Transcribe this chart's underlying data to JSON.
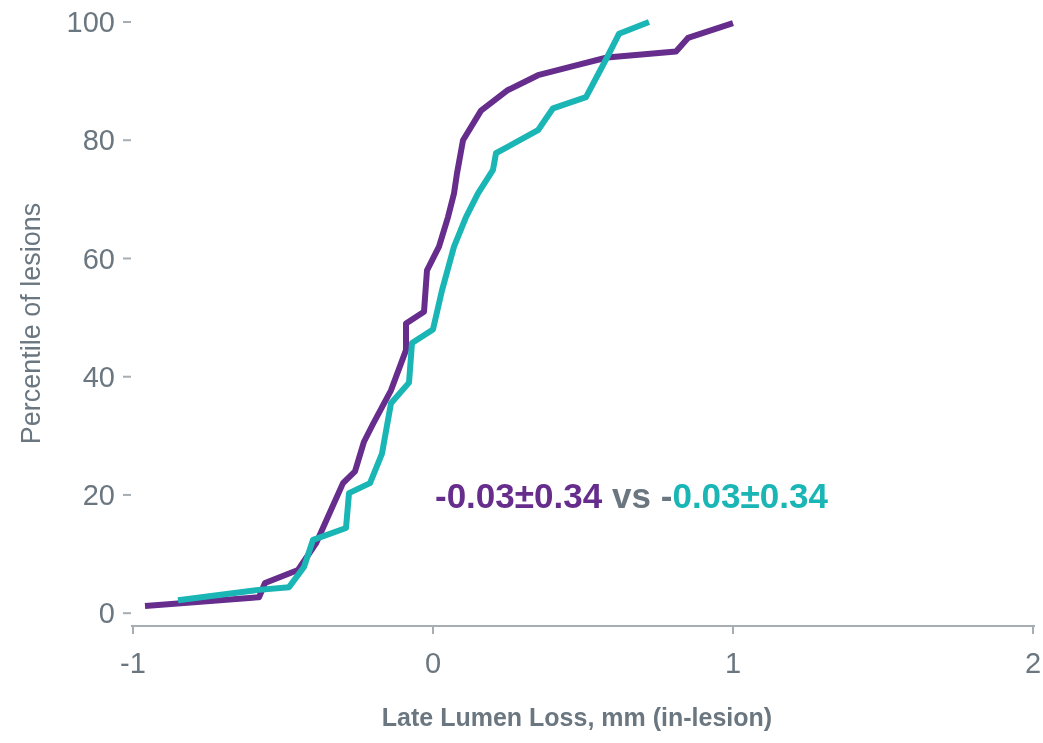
{
  "chart_data": {
    "type": "line",
    "xlabel": "Late Lumen Loss, mm (in-lesion)",
    "ylabel": "Percentile of lesions",
    "xlim": [
      -1,
      2
    ],
    "xticks": [
      -1,
      0,
      1,
      2
    ],
    "ylim": [
      -2,
      100
    ],
    "yticks": [
      0,
      20,
      40,
      60,
      80,
      100
    ],
    "grid": false,
    "marker": "none",
    "line_style": "solid",
    "annotations": [
      "-0.03±0.34",
      "vs -",
      "0.03±0.34"
    ],
    "series": [
      {
        "color": "#662d8c",
        "x": [
          -0.96,
          -0.58,
          -0.56,
          -0.45,
          -0.39,
          -0.3,
          -0.26,
          -0.23,
          -0.2,
          -0.14,
          -0.09,
          -0.09,
          -0.03,
          -0.02,
          0.02,
          0.05,
          0.07,
          0.08,
          0.1,
          0.16,
          0.25,
          0.35,
          0.48,
          0.58,
          0.81,
          0.85,
          1.0
        ],
        "values": [
          1.2,
          2.7,
          5.1,
          7.3,
          11.8,
          22,
          24,
          29,
          32,
          37.7,
          44.5,
          49,
          51,
          58,
          62,
          67,
          71,
          74.4,
          80,
          85,
          88.5,
          91,
          92.7,
          94,
          95,
          97.3,
          99.8
        ]
      },
      {
        "color": "#1ab5b5",
        "x": [
          -0.85,
          -0.59,
          -0.48,
          -0.43,
          -0.4,
          -0.29,
          -0.28,
          -0.21,
          -0.17,
          -0.14,
          -0.08,
          -0.07,
          0.0,
          0.03,
          0.07,
          0.11,
          0.15,
          0.2,
          0.21,
          0.35,
          0.4,
          0.51,
          0.58,
          0.62,
          0.72
        ],
        "values": [
          2.2,
          3.9,
          4.4,
          7.8,
          12.4,
          14.4,
          20.3,
          22,
          27,
          35.5,
          39,
          45.7,
          48,
          54.6,
          62,
          67,
          71,
          75,
          77.8,
          81.7,
          85.4,
          87.3,
          94,
          98,
          100
        ]
      }
    ]
  }
}
